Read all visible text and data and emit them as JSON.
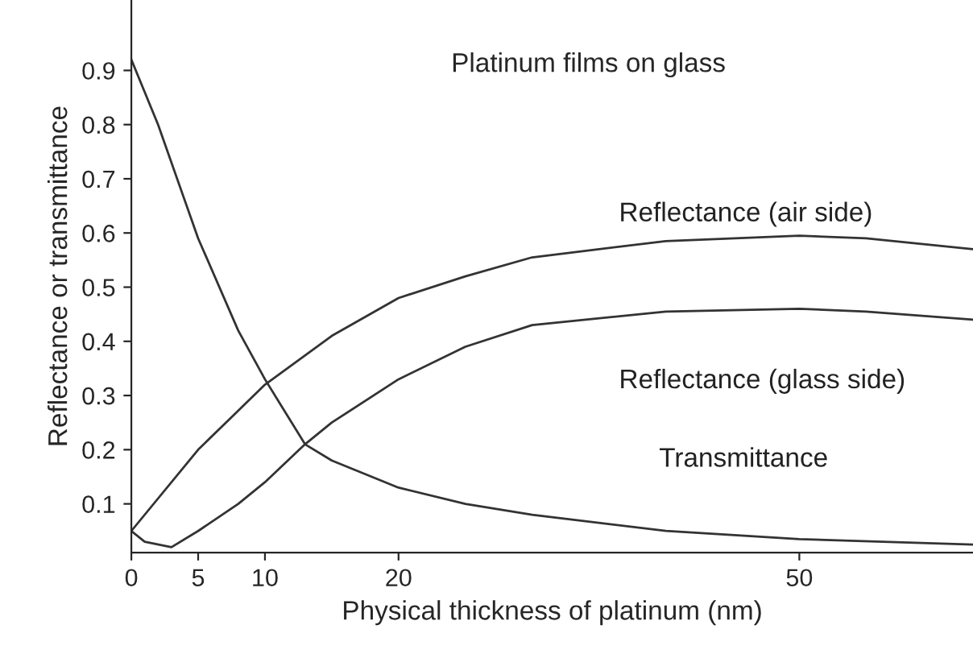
{
  "chart_data": {
    "type": "line",
    "title": "Platinum films on glass",
    "xlabel": "Physical thickness of platinum (nm)",
    "ylabel": "Reflectance or transmittance",
    "xlim": [
      0,
      63
    ],
    "xticks": [
      0,
      5,
      10,
      20,
      50
    ],
    "ylim": [
      0.01,
      1.03
    ],
    "yticks": [
      0.1,
      0.2,
      0.3,
      0.4,
      0.5,
      0.6,
      0.7,
      0.8,
      0.9
    ],
    "grid": false,
    "marker": "none",
    "line_style": "solid",
    "series": [
      {
        "name": "Transmittance",
        "color": "#333333",
        "x": [
          0,
          2,
          5,
          8,
          10,
          13,
          15,
          20,
          25,
          30,
          40,
          50,
          63
        ],
        "values": [
          0.92,
          0.8,
          0.59,
          0.42,
          0.33,
          0.21,
          0.18,
          0.13,
          0.1,
          0.08,
          0.05,
          0.035,
          0.025
        ]
      },
      {
        "name": "Reflectance (air side)",
        "color": "#333333",
        "x": [
          0,
          5,
          10,
          15,
          20,
          25,
          30,
          40,
          50,
          55,
          63
        ],
        "values": [
          0.05,
          0.2,
          0.32,
          0.41,
          0.48,
          0.52,
          0.555,
          0.585,
          0.595,
          0.59,
          0.57
        ]
      },
      {
        "name": "Reflectance (glass side)",
        "color": "#333333",
        "x": [
          0,
          1,
          3,
          5,
          8,
          10,
          13,
          15,
          20,
          25,
          30,
          40,
          50,
          55,
          63
        ],
        "values": [
          0.05,
          0.03,
          0.02,
          0.05,
          0.1,
          0.14,
          0.21,
          0.25,
          0.33,
          0.39,
          0.43,
          0.455,
          0.46,
          0.455,
          0.44
        ]
      }
    ]
  }
}
